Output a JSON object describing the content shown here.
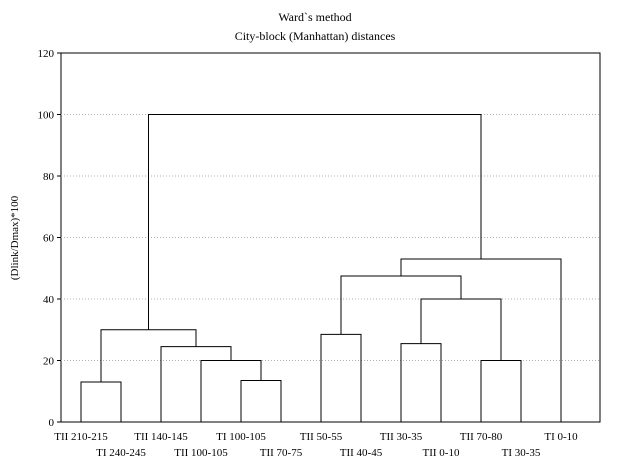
{
  "chart_data": {
    "type": "dendrogram",
    "title": "Ward`s method",
    "subtitle": "City-block (Manhattan) distances",
    "xlabel": "",
    "ylabel": "(Dlink/Dmax)*100",
    "ylim": [
      0,
      120
    ],
    "yticks": [
      0,
      20,
      40,
      60,
      80,
      100,
      120
    ],
    "grid": "horizontal dotted",
    "leaves": [
      "TII 210-215",
      "TI 240-245",
      "TII 140-145",
      "TII 100-105",
      "TI 100-105",
      "TII 70-75",
      "TII 50-55",
      "TII 40-45",
      "TII 30-35",
      "TII 0-10",
      "TII 70-80",
      "TI 30-35",
      "TI 0-10"
    ],
    "merges": [
      {
        "left": "TII 210-215",
        "right": "TI 240-245",
        "height": 13
      },
      {
        "left": "TI 100-105",
        "right": "TII 70-75",
        "height": 13.5
      },
      {
        "left": "TII 100-105",
        "right": "TI 100-105 + TII 70-75",
        "height": 20
      },
      {
        "left": "TII 140-145",
        "right": "TII 100-105 + TI 100-105 + TII 70-75",
        "height": 24.5
      },
      {
        "left": "TII 210-215 + TI 240-245",
        "right": "TII 140-145 + TII 100-105 + TI 100-105 + TII 70-75",
        "height": 30
      },
      {
        "left": "TII 50-55",
        "right": "TII 40-45",
        "height": 28.5
      },
      {
        "left": "TII 30-35",
        "right": "TII 0-10",
        "height": 25.5
      },
      {
        "left": "TII 70-80",
        "right": "TI 30-35",
        "height": 20
      },
      {
        "left": "TII 30-35 + TII 0-10",
        "right": "TII 70-80 + TI 30-35",
        "height": 40
      },
      {
        "left": "TII 50-55 + TII 40-45",
        "right": "TII 30-35 + TII 0-10 + TII 70-80 + TI 30-35",
        "height": 47.5
      },
      {
        "left": "TII 50-55 + TII 40-45 + TII 30-35 + TII 0-10 + TII 70-80 + TI 30-35",
        "right": "TI 0-10",
        "height": 53
      },
      {
        "left": "TII 210-215 + TI 240-245 + TII 140-145 + TII 100-105 + TI 100-105 + TII 70-75",
        "right": "TII 50-55 + TII 40-45 + TII 30-35 + TII 0-10 + TII 70-80 + TI 30-35 + TI 0-10",
        "height": 100
      }
    ]
  }
}
